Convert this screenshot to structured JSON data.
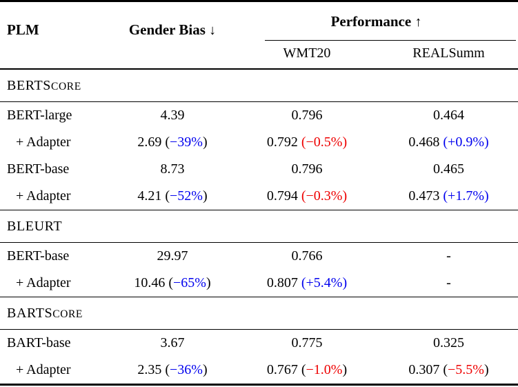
{
  "colors": {
    "improvement_blue": "#0000ee",
    "degradation_red": "#ee0000",
    "text": "#000000",
    "rules": "#000000",
    "background": "#ffffff"
  },
  "header": {
    "plm_label": "PLM",
    "gender_bias_label": "Gender Bias",
    "gender_bias_arrow": "↓",
    "performance_label": "Performance",
    "performance_arrow": "↑",
    "wmt20_label": "WMT20",
    "realsumm_label": "REALSumm"
  },
  "sections": [
    {
      "name": "BERTScore",
      "label_main": "BERTS",
      "label_small": "CORE",
      "rows": [
        {
          "plm": "BERT-large",
          "plm_class": "",
          "gender_bias": {
            "pre": "4.39"
          },
          "wmt20": {
            "pre": "0.796"
          },
          "realsumm": {
            "pre": "0.464"
          }
        },
        {
          "plm": "+ Adapter",
          "plm_class": "indent",
          "gender_bias": {
            "pre": "2.69 (",
            "delta": "−39%",
            "delta_class": "blue",
            "post": ")"
          },
          "wmt20": {
            "pre": "0.792 ",
            "delta": "(−0.5%)",
            "delta_class": "red"
          },
          "realsumm": {
            "pre": "0.468 ",
            "delta": "(+0.9%)",
            "delta_class": "blue"
          }
        },
        {
          "plm": "BERT-base",
          "plm_class": "",
          "gender_bias": {
            "pre": "8.73"
          },
          "wmt20": {
            "pre": "0.796"
          },
          "realsumm": {
            "pre": "0.465"
          }
        },
        {
          "plm": "+ Adapter",
          "plm_class": "indent",
          "gender_bias": {
            "pre": "4.21 (",
            "delta": "−52%",
            "delta_class": "blue",
            "post": ")"
          },
          "wmt20": {
            "pre": "0.794 ",
            "delta": "(−0.3%)",
            "delta_class": "red"
          },
          "realsumm": {
            "pre": "0.473 ",
            "delta": "(+1.7%)",
            "delta_class": "blue"
          }
        }
      ]
    },
    {
      "name": "BLEURT",
      "label_main": "BLEURT",
      "label_small": "",
      "rows": [
        {
          "plm": "BERT-base",
          "plm_class": "",
          "gender_bias": {
            "pre": "29.97"
          },
          "wmt20": {
            "pre": "0.766"
          },
          "realsumm": {
            "pre": "-"
          }
        },
        {
          "plm": "+ Adapter",
          "plm_class": "indent",
          "gender_bias": {
            "pre": "10.46 (",
            "delta": "−65%",
            "delta_class": "blue",
            "post": ")"
          },
          "wmt20": {
            "pre": "0.807 ",
            "delta": "(+5.4%)",
            "delta_class": "blue"
          },
          "realsumm": {
            "pre": "-"
          }
        }
      ]
    },
    {
      "name": "BARTScore",
      "label_main": "BARTS",
      "label_small": "CORE",
      "rows": [
        {
          "plm": "BART-base",
          "plm_class": "",
          "gender_bias": {
            "pre": "3.67"
          },
          "wmt20": {
            "pre": "0.775"
          },
          "realsumm": {
            "pre": "0.325"
          }
        },
        {
          "plm": "+ Adapter",
          "plm_class": "indent",
          "gender_bias": {
            "pre": "2.35 (",
            "delta": "−36%",
            "delta_class": "blue",
            "post": ")"
          },
          "wmt20": {
            "pre": "0.767 (",
            "delta": "−1.0%",
            "delta_class": "red",
            "post": ")"
          },
          "realsumm": {
            "pre": "0.307 (",
            "delta": "−5.5%",
            "delta_class": "red",
            "post": ")"
          }
        }
      ]
    }
  ]
}
